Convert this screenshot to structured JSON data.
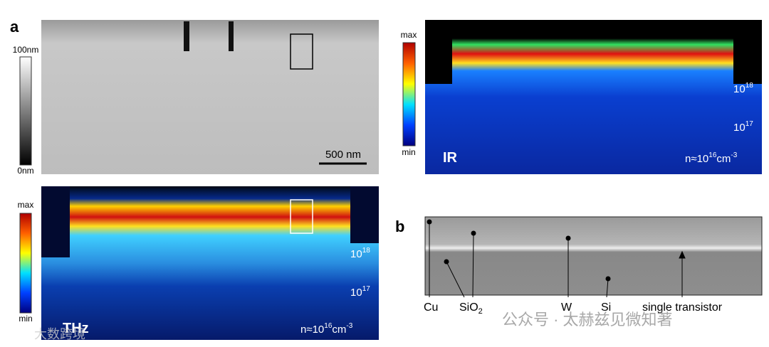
{
  "panel_a": {
    "label": "a",
    "topography": {
      "scale_max": "100nm",
      "scale_min": "0nm",
      "scale_bar": "500 nm"
    },
    "thz": {
      "cbar_max": "max",
      "cbar_min": "min",
      "levels": [
        {
          "base": "10",
          "sup": "18"
        },
        {
          "base": "10",
          "sup": "17"
        }
      ],
      "name": "THz",
      "density": {
        "base": "n≈10",
        "sup": "16",
        "unit": "cm",
        "unit_sup": "-3"
      }
    }
  },
  "ir": {
    "cbar_max": "max",
    "cbar_min": "min",
    "levels": [
      {
        "base": "10",
        "sup": "18"
      },
      {
        "base": "10",
        "sup": "17"
      }
    ],
    "name": "IR",
    "density": {
      "base": "n≈10",
      "sup": "16",
      "unit": "cm",
      "unit_sup": "-3"
    }
  },
  "panel_b": {
    "label": "b",
    "cu": "Cu",
    "sio2": {
      "base": "SiO",
      "sub": "2"
    },
    "w": "W",
    "si": "Si",
    "transistor": "single transistor"
  },
  "watermarks": {
    "channel": "公众号 · 太赫兹见微知著",
    "corner": "大数跨境"
  }
}
